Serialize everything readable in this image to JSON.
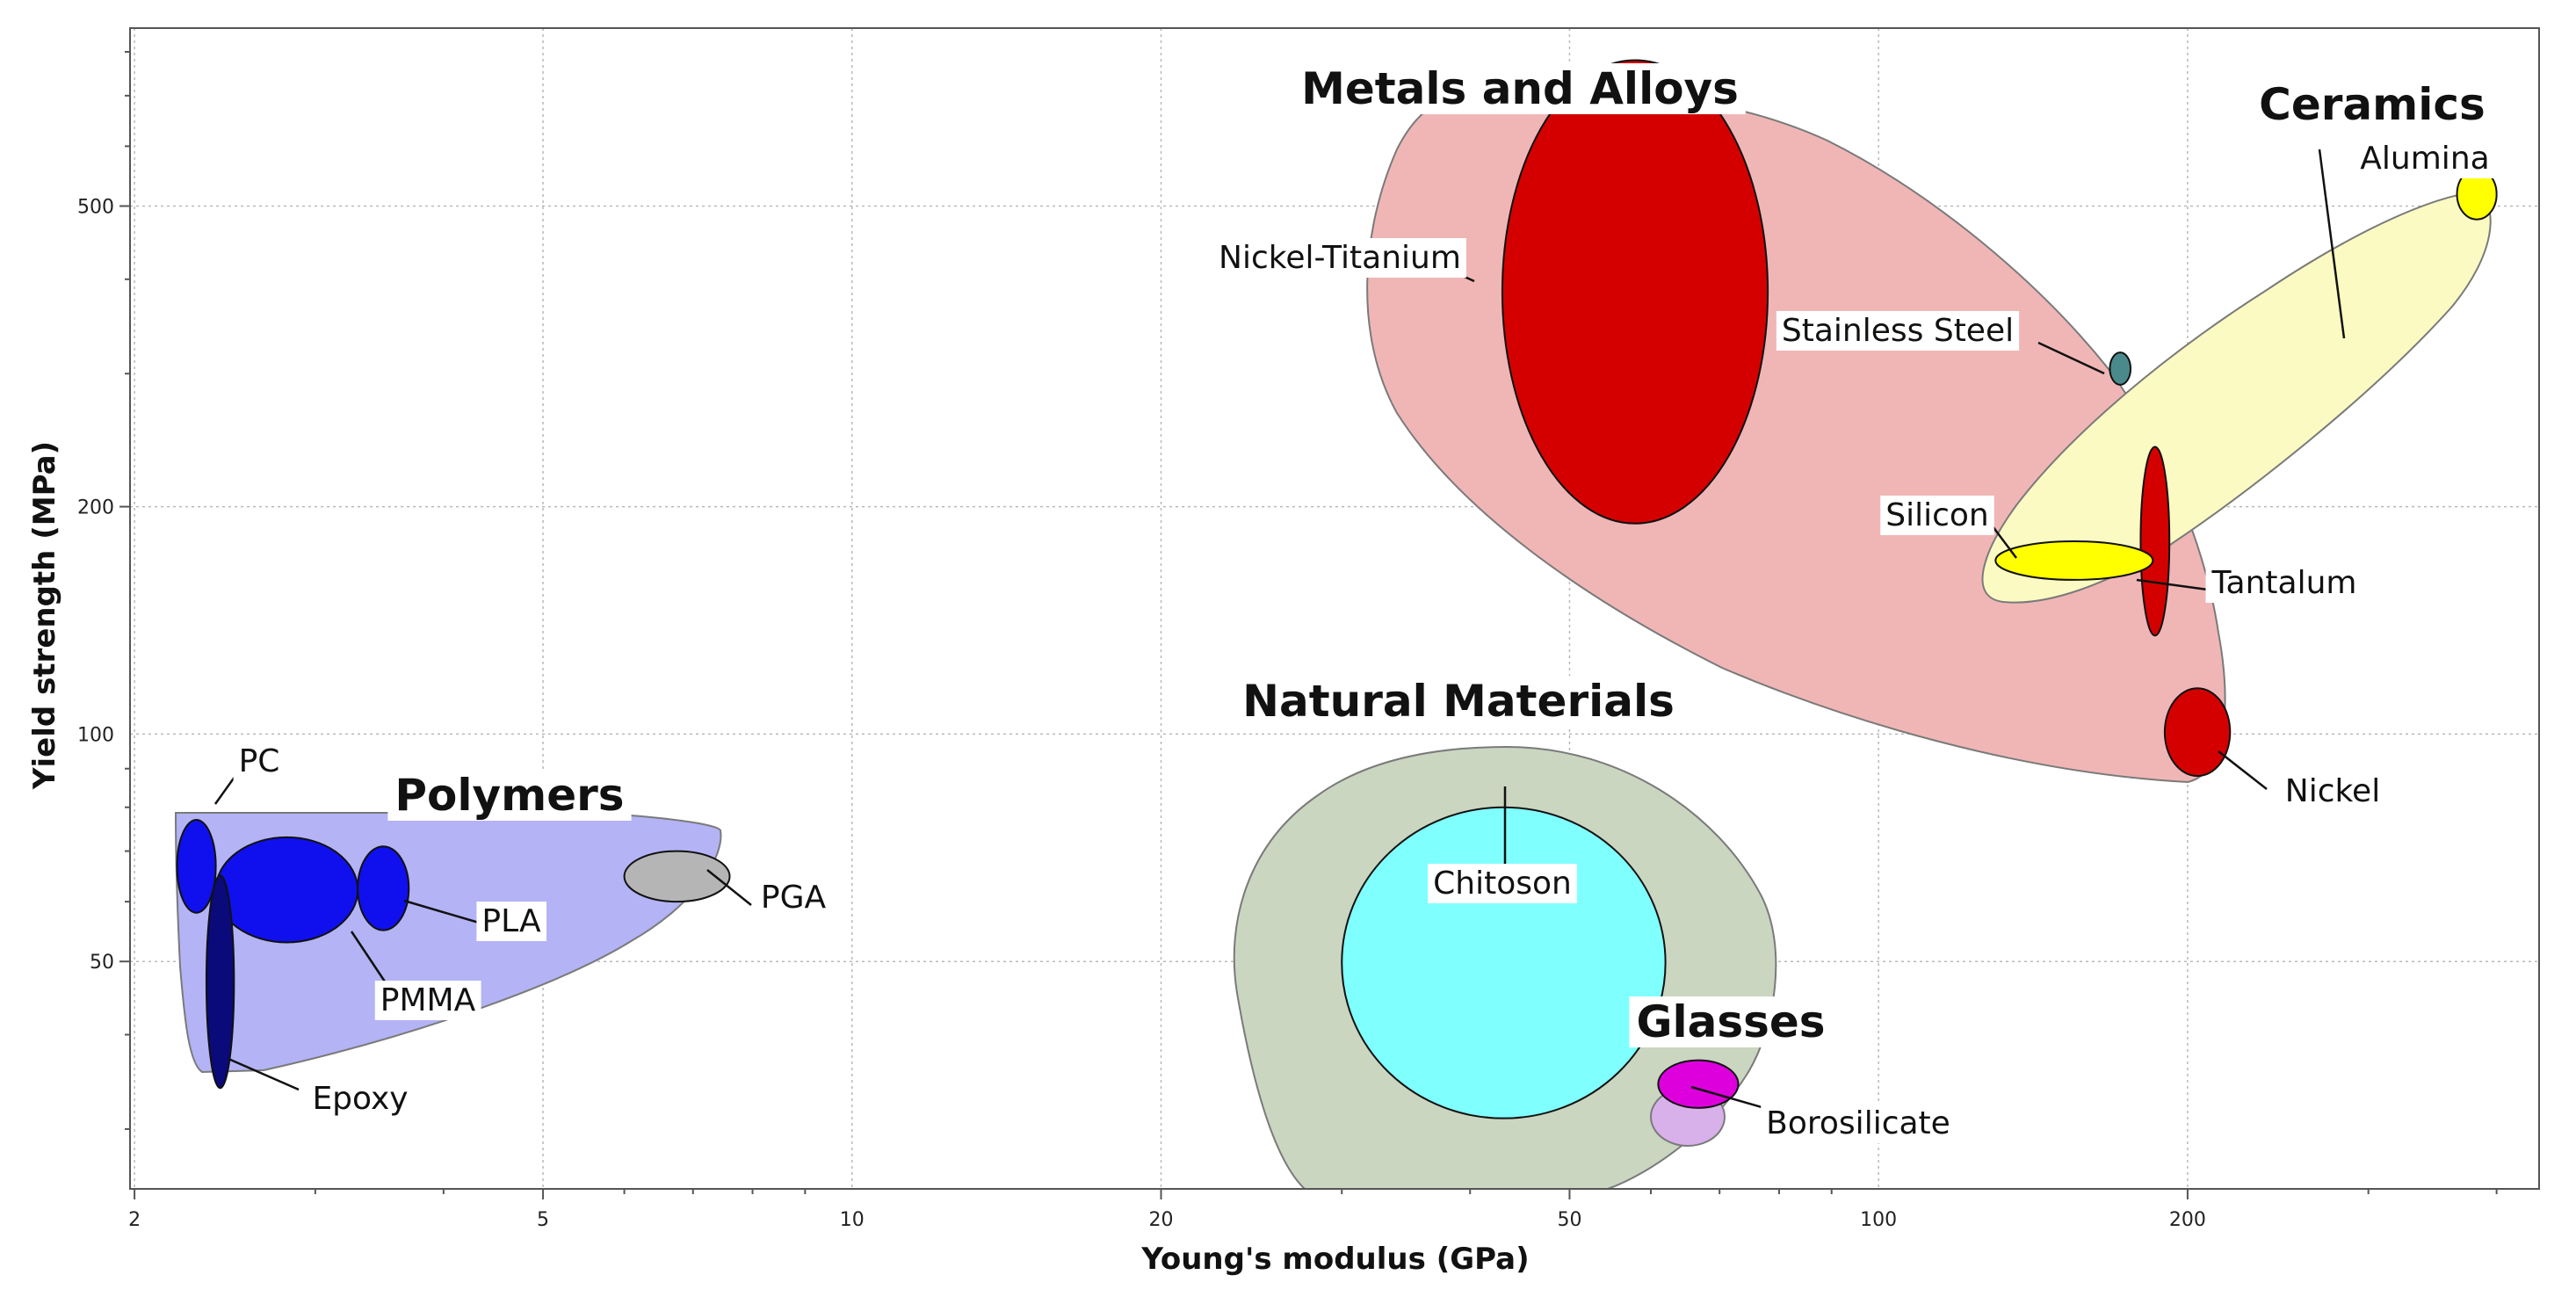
{
  "chart_data": {
    "type": "scatter",
    "title": "",
    "xlabel": "Young's modulus (GPa)",
    "ylabel": "Yield strength (MPa)",
    "x_scale": "log",
    "y_scale": "log",
    "xlim": [
      1.98,
      440
    ],
    "ylim": [
      25,
      860
    ],
    "x_ticks": [
      2,
      5,
      10,
      20,
      50,
      100,
      200
    ],
    "y_ticks": [
      50,
      100,
      200,
      500
    ],
    "grid": true,
    "groups": [
      {
        "name": "Metals and Alloys",
        "color": "#f0b6b6"
      },
      {
        "name": "Ceramics",
        "color": "#fbfac2"
      },
      {
        "name": "Polymers",
        "color": "#b3b3f6"
      },
      {
        "name": "Natural Materials",
        "color": "#cad6c0"
      },
      {
        "name": "Glasses",
        "color": "#d8b0ea"
      }
    ],
    "materials": [
      {
        "name": "Nickel-Titanium",
        "group": "Metals and Alloys",
        "x_range": [
          43,
          78
        ],
        "y_range": [
          190,
          780
        ],
        "color": "#d40000"
      },
      {
        "name": "Stainless Steel",
        "group": "Metals and Alloys",
        "x_range": [
          168,
          176
        ],
        "y_range": [
          290,
          320
        ],
        "color": "#4a8a8c"
      },
      {
        "name": "Tantalum",
        "group": "Metals and Alloys",
        "x_range": [
          180,
          192
        ],
        "y_range": [
          135,
          240
        ],
        "color": "#d40000"
      },
      {
        "name": "Nickel",
        "group": "Metals and Alloys",
        "x_range": [
          190,
          220
        ],
        "y_range": [
          88,
          115
        ],
        "color": "#d40000"
      },
      {
        "name": "Alumina",
        "group": "Ceramics",
        "x_range": [
          366,
          400
        ],
        "y_range": [
          480,
          560
        ],
        "color": "#ffff00"
      },
      {
        "name": "Silicon",
        "group": "Ceramics",
        "x_range": [
          130,
          185
        ],
        "y_range": [
          160,
          180
        ],
        "color": "#ffff00"
      },
      {
        "name": "PC",
        "group": "Polymers",
        "x_range": [
          2.2,
          2.4
        ],
        "y_range": [
          58,
          77
        ],
        "color": "#1010ee"
      },
      {
        "name": "PMMA",
        "group": "Polymers",
        "x_range": [
          2.4,
          3.3
        ],
        "y_range": [
          53,
          73
        ],
        "color": "#1010ee"
      },
      {
        "name": "PLA",
        "group": "Polymers",
        "x_range": [
          3.3,
          3.7
        ],
        "y_range": [
          55,
          71
        ],
        "color": "#1010ee"
      },
      {
        "name": "Epoxy",
        "group": "Polymers",
        "x_range": [
          2.35,
          2.5
        ],
        "y_range": [
          34,
          65
        ],
        "color": "#0a0a7a"
      },
      {
        "name": "PGA",
        "group": "Polymers",
        "x_range": [
          6.0,
          7.6
        ],
        "y_range": [
          60,
          70
        ],
        "color": "#b5b5b5"
      },
      {
        "name": "Chitoson",
        "group": "Natural Materials",
        "x_range": [
          30,
          62
        ],
        "y_range": [
          31,
          80
        ],
        "color": "#80ffff"
      },
      {
        "name": "Borosilicate",
        "group": "Glasses",
        "x_range": [
          61,
          73
        ],
        "y_range": [
          32,
          37
        ],
        "color": "#dd00dd"
      }
    ]
  }
}
